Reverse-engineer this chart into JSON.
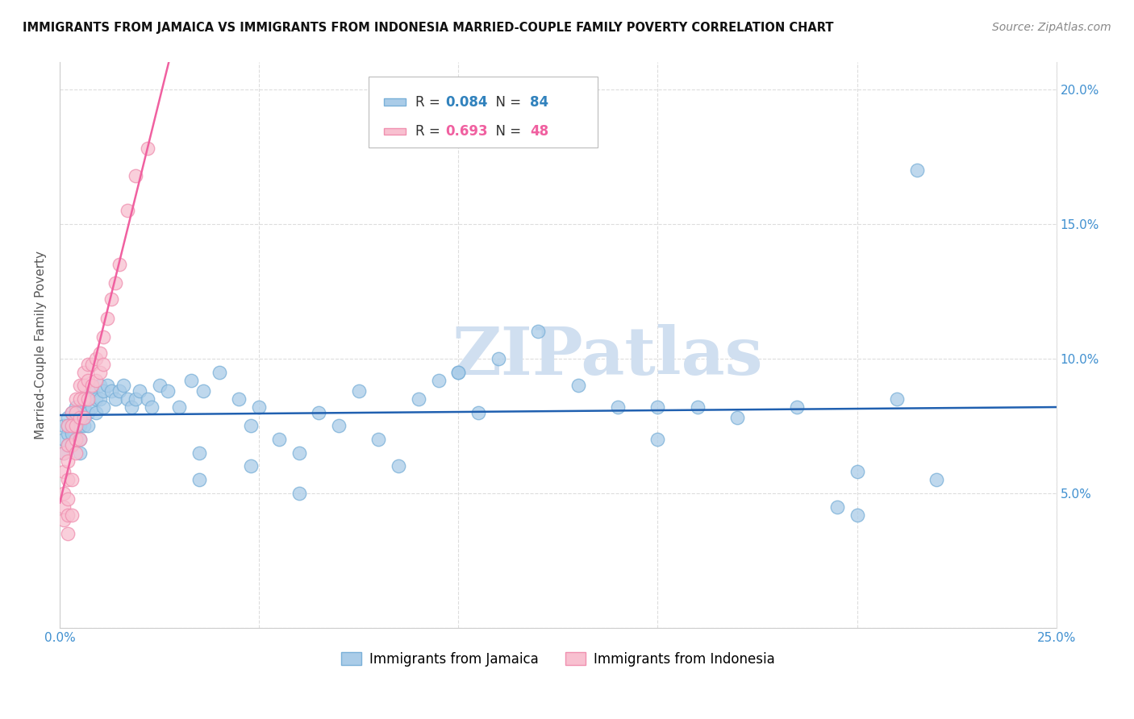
{
  "title": "IMMIGRANTS FROM JAMAICA VS IMMIGRANTS FROM INDONESIA MARRIED-COUPLE FAMILY POVERTY CORRELATION CHART",
  "source": "Source: ZipAtlas.com",
  "ylabel": "Married-Couple Family Poverty",
  "xlim": [
    0.0,
    0.25
  ],
  "ylim": [
    0.0,
    0.21
  ],
  "xticks": [
    0.0,
    0.05,
    0.1,
    0.15,
    0.2,
    0.25
  ],
  "yticks": [
    0.0,
    0.05,
    0.1,
    0.15,
    0.2
  ],
  "xticklabels": [
    "0.0%",
    "",
    "",
    "",
    "",
    "25.0%"
  ],
  "yticklabels_right": [
    "",
    "5.0%",
    "10.0%",
    "15.0%",
    "20.0%"
  ],
  "jamaica_color": "#aacce8",
  "jamaica_edge": "#7ab0d8",
  "indonesia_color": "#f8c0d0",
  "indonesia_edge": "#f090b0",
  "jamaica_line_color": "#2060b0",
  "indonesia_line_color": "#f060a0",
  "jamaica_R": 0.084,
  "jamaica_N": 84,
  "indonesia_R": 0.693,
  "indonesia_N": 48,
  "jamaica_scatter_x": [
    0.001,
    0.001,
    0.001,
    0.002,
    0.002,
    0.002,
    0.002,
    0.003,
    0.003,
    0.003,
    0.003,
    0.004,
    0.004,
    0.004,
    0.004,
    0.005,
    0.005,
    0.005,
    0.005,
    0.006,
    0.006,
    0.006,
    0.007,
    0.007,
    0.007,
    0.008,
    0.008,
    0.009,
    0.009,
    0.01,
    0.01,
    0.011,
    0.011,
    0.012,
    0.013,
    0.014,
    0.015,
    0.016,
    0.017,
    0.018,
    0.019,
    0.02,
    0.022,
    0.023,
    0.025,
    0.027,
    0.03,
    0.033,
    0.036,
    0.04,
    0.045,
    0.05,
    0.055,
    0.06,
    0.065,
    0.07,
    0.075,
    0.08,
    0.09,
    0.095,
    0.1,
    0.105,
    0.11,
    0.12,
    0.13,
    0.14,
    0.15,
    0.16,
    0.17,
    0.185,
    0.195,
    0.2,
    0.21,
    0.215,
    0.22,
    0.035,
    0.048,
    0.06,
    0.085,
    0.1,
    0.15,
    0.2,
    0.035,
    0.048
  ],
  "jamaica_scatter_y": [
    0.075,
    0.07,
    0.065,
    0.078,
    0.072,
    0.068,
    0.075,
    0.08,
    0.075,
    0.068,
    0.072,
    0.082,
    0.078,
    0.075,
    0.07,
    0.08,
    0.075,
    0.07,
    0.065,
    0.082,
    0.078,
    0.075,
    0.085,
    0.08,
    0.075,
    0.088,
    0.082,
    0.085,
    0.08,
    0.09,
    0.085,
    0.088,
    0.082,
    0.09,
    0.088,
    0.085,
    0.088,
    0.09,
    0.085,
    0.082,
    0.085,
    0.088,
    0.085,
    0.082,
    0.09,
    0.088,
    0.082,
    0.092,
    0.088,
    0.095,
    0.085,
    0.082,
    0.07,
    0.065,
    0.08,
    0.075,
    0.088,
    0.07,
    0.085,
    0.092,
    0.095,
    0.08,
    0.1,
    0.11,
    0.09,
    0.082,
    0.07,
    0.082,
    0.078,
    0.082,
    0.045,
    0.058,
    0.085,
    0.17,
    0.055,
    0.055,
    0.06,
    0.05,
    0.06,
    0.095,
    0.082,
    0.042,
    0.065,
    0.075
  ],
  "indonesia_scatter_x": [
    0.001,
    0.001,
    0.001,
    0.001,
    0.001,
    0.002,
    0.002,
    0.002,
    0.002,
    0.002,
    0.002,
    0.002,
    0.003,
    0.003,
    0.003,
    0.003,
    0.003,
    0.004,
    0.004,
    0.004,
    0.004,
    0.004,
    0.005,
    0.005,
    0.005,
    0.005,
    0.006,
    0.006,
    0.006,
    0.006,
    0.007,
    0.007,
    0.007,
    0.008,
    0.008,
    0.009,
    0.009,
    0.01,
    0.01,
    0.011,
    0.011,
    0.012,
    0.013,
    0.014,
    0.015,
    0.017,
    0.019,
    0.022
  ],
  "indonesia_scatter_y": [
    0.065,
    0.058,
    0.05,
    0.045,
    0.04,
    0.075,
    0.068,
    0.062,
    0.055,
    0.048,
    0.042,
    0.035,
    0.08,
    0.075,
    0.068,
    0.055,
    0.042,
    0.085,
    0.08,
    0.075,
    0.07,
    0.065,
    0.09,
    0.085,
    0.078,
    0.07,
    0.095,
    0.09,
    0.085,
    0.078,
    0.098,
    0.092,
    0.085,
    0.098,
    0.09,
    0.1,
    0.092,
    0.102,
    0.095,
    0.108,
    0.098,
    0.115,
    0.122,
    0.128,
    0.135,
    0.155,
    0.168,
    0.178
  ],
  "watermark_text": "ZIPatlas",
  "watermark_color": "#d0dff0",
  "background_color": "#ffffff",
  "grid_color": "#dddddd",
  "legend_box_color": "#eeeeee"
}
